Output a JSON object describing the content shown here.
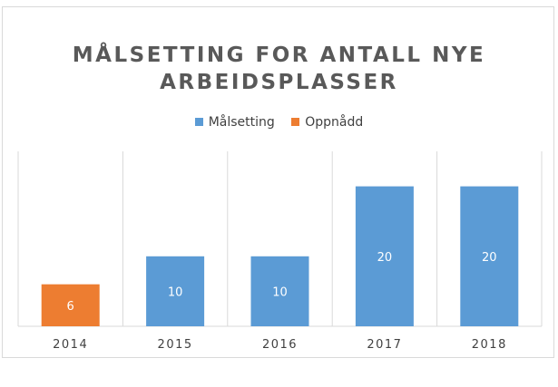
{
  "chart_data": {
    "type": "bar",
    "title_lines": [
      "MÅLSETTING FOR ANTALL NYE",
      "ARBEIDSPLASSER"
    ],
    "categories": [
      "2014",
      "2015",
      "2016",
      "2017",
      "2018"
    ],
    "series": [
      {
        "name": "Målsetting",
        "color": "#5b9bd5",
        "values": [
          null,
          10,
          10,
          20,
          20
        ]
      },
      {
        "name": "Oppnådd",
        "color": "#ed7d31",
        "values": [
          6,
          null,
          null,
          null,
          null
        ]
      }
    ],
    "ylim": [
      0,
      25
    ],
    "gridlines": "vertical category separators",
    "legend_position": "top"
  }
}
